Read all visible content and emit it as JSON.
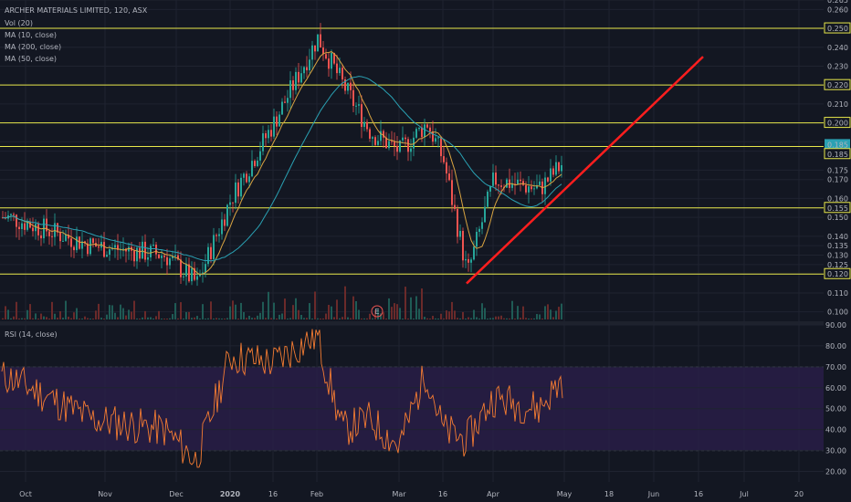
{
  "chart_data": [
    {
      "type": "candlestick",
      "title": "ARCHER MATERIALS LIMITED, 120, ASX",
      "indicators": [
        "Vol (20)",
        "MA (10, close)",
        "MA (200, close)",
        "MA (50, close)"
      ],
      "ylim": [
        0.095,
        0.265
      ],
      "y_ticks": [
        "0.265",
        "0.260",
        "0.250",
        "0.240",
        "0.230",
        "0.220",
        "0.210",
        "0.200",
        "0.190",
        "0.185",
        "0.175",
        "0.170",
        "0.160",
        "0.155",
        "0.150",
        "0.140",
        "0.135",
        "0.130",
        "0.125",
        "0.120",
        "0.110",
        "0.100"
      ],
      "highlighted_levels": [
        "0.250",
        "0.220",
        "0.200",
        "0.185",
        "0.185",
        "0.155",
        "0.120"
      ],
      "horizontal_levels": [
        0.25,
        0.22,
        0.2,
        0.1875,
        0.155,
        0.12
      ],
      "x_ticks": [
        "Oct",
        "Nov",
        "Dec",
        "2020",
        "16",
        "Feb",
        "Mar",
        "16",
        "Apr",
        "May",
        "18",
        "Jun",
        "16",
        "Jul",
        "20"
      ],
      "trendline": {
        "from": {
          "x": "Mar 24",
          "y": 0.115
        },
        "to": {
          "x": "Jun 18",
          "y": 0.235
        },
        "color": "#ff1e1e"
      },
      "series_close_approx": [
        {
          "x": "Oct",
          "y": 0.15
        },
        {
          "x": "Nov",
          "y": 0.135
        },
        {
          "x": "Dec",
          "y": 0.13
        },
        {
          "x": "Dec 20",
          "y": 0.115
        },
        {
          "x": "2020",
          "y": 0.16
        },
        {
          "x": "16",
          "y": 0.2
        },
        {
          "x": "Feb",
          "y": 0.245
        },
        {
          "x": "Feb 10",
          "y": 0.22
        },
        {
          "x": "Feb 20",
          "y": 0.195
        },
        {
          "x": "Mar",
          "y": 0.185
        },
        {
          "x": "Mar 8",
          "y": 0.2
        },
        {
          "x": "16",
          "y": 0.18
        },
        {
          "x": "Mar 24",
          "y": 0.12
        },
        {
          "x": "Apr",
          "y": 0.17
        },
        {
          "x": "Apr 16",
          "y": 0.165
        },
        {
          "x": "May",
          "y": 0.18
        }
      ],
      "colors": {
        "up": "#26a69a",
        "down": "#ef5350",
        "ma10": "#d9a441",
        "ma50": "#2aa1b3",
        "level": "#e8e84a"
      }
    },
    {
      "type": "line",
      "title": "RSI (14, close)",
      "ylim": [
        15,
        90
      ],
      "y_ticks": [
        "90.00",
        "80.00",
        "70.00",
        "60.00",
        "50.00",
        "40.00",
        "30.00",
        "20.00"
      ],
      "bands": [
        30,
        70
      ],
      "series_approx": [
        {
          "x": "Oct",
          "y": 65
        },
        {
          "x": "Nov",
          "y": 45
        },
        {
          "x": "Dec",
          "y": 40
        },
        {
          "x": "Dec 20",
          "y": 25
        },
        {
          "x": "2020",
          "y": 75
        },
        {
          "x": "16",
          "y": 72
        },
        {
          "x": "Feb",
          "y": 85
        },
        {
          "x": "Feb 10",
          "y": 40
        },
        {
          "x": "Feb 20",
          "y": 45
        },
        {
          "x": "Mar",
          "y": 32
        },
        {
          "x": "Mar 8",
          "y": 68
        },
        {
          "x": "16",
          "y": 40
        },
        {
          "x": "Mar 24",
          "y": 35
        },
        {
          "x": "Apr",
          "y": 55
        },
        {
          "x": "Apr 16",
          "y": 50
        },
        {
          "x": "May",
          "y": 65
        }
      ],
      "colors": {
        "line": "#f57c32",
        "band": "#7e57c2"
      }
    }
  ],
  "marker": "E"
}
